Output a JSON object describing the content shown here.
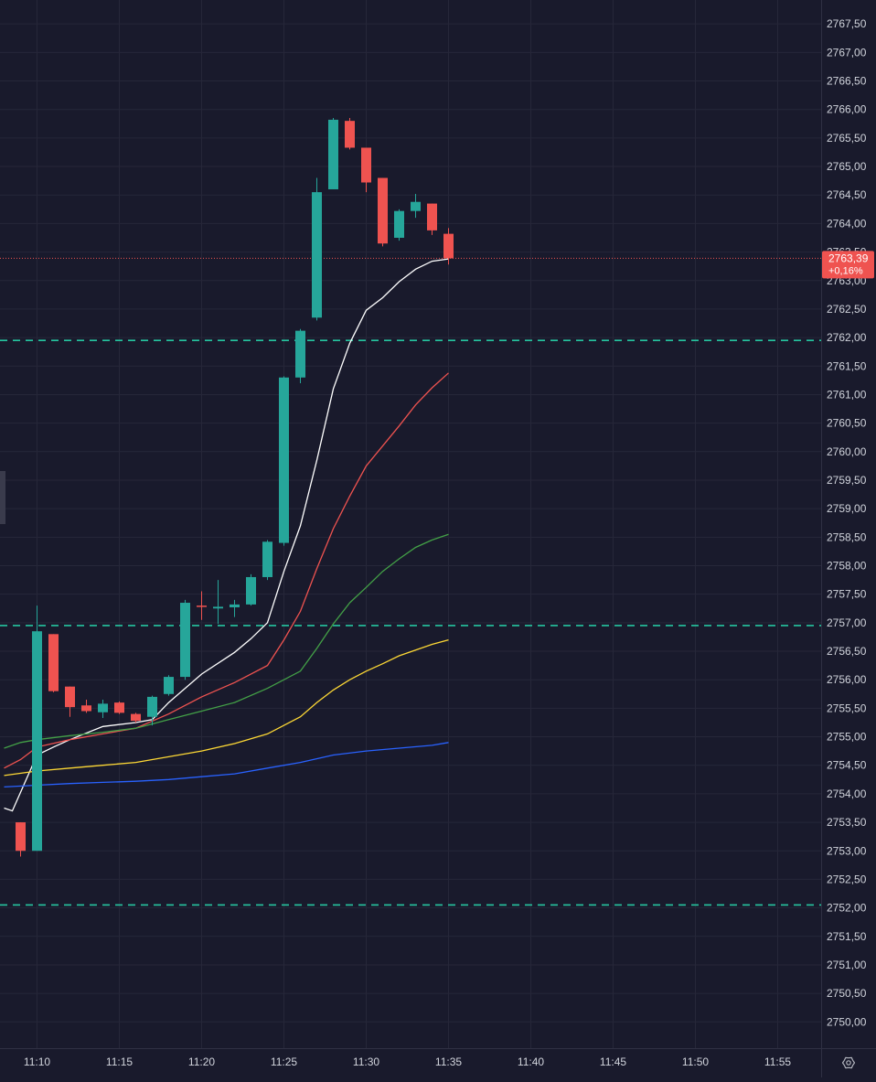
{
  "colors": {
    "background": "#191a2c",
    "grid": "#262739",
    "axis_text": "#d1d4dc",
    "up": "#26a69a",
    "down": "#ef5350",
    "level_line": "#26c6a0",
    "price_line": "#ef5350",
    "icon": "#b2b5be"
  },
  "axis": {
    "settings_icon": "gear-icon"
  },
  "chart_data": {
    "type": "candlestick",
    "interval_minutes": 1,
    "xlim": [
      "11:08",
      "11:56"
    ],
    "ylim": [
      2749.6,
      2767.9
    ],
    "x_ticks": [
      "11:10",
      "11:15",
      "11:20",
      "11:25",
      "11:30",
      "11:35",
      "11:40",
      "11:45",
      "11:50",
      "11:55"
    ],
    "y_ticks": [
      "2750,00",
      "2750,50",
      "2751,00",
      "2751,50",
      "2752,00",
      "2752,50",
      "2753,00",
      "2753,50",
      "2754,00",
      "2754,50",
      "2755,00",
      "2755,50",
      "2756,00",
      "2756,50",
      "2757,00",
      "2757,50",
      "2758,00",
      "2758,50",
      "2759,00",
      "2759,50",
      "2760,00",
      "2760,50",
      "2761,00",
      "2761,50",
      "2762,00",
      "2762,50",
      "2763,00",
      "2763,50",
      "2764,00",
      "2764,50",
      "2765,00",
      "2765,50",
      "2766,00",
      "2766,50",
      "2767,00",
      "2767,50"
    ],
    "last_price": {
      "value": 2763.39,
      "label": "2763,39",
      "change": "+0,16%"
    },
    "levels": [
      2761.95,
      2756.95,
      2752.05
    ],
    "candles": [
      {
        "t": "11:09",
        "o": 2753.5,
        "h": 2753.5,
        "l": 2752.9,
        "c": 2753.0
      },
      {
        "t": "11:10",
        "o": 2753.0,
        "h": 2757.3,
        "l": 2753.0,
        "c": 2756.85
      },
      {
        "t": "11:11",
        "o": 2756.8,
        "h": 2756.8,
        "l": 2755.78,
        "c": 2755.8
      },
      {
        "t": "11:12",
        "o": 2755.88,
        "h": 2755.88,
        "l": 2755.35,
        "c": 2755.52
      },
      {
        "t": "11:13",
        "o": 2755.55,
        "h": 2755.65,
        "l": 2755.42,
        "c": 2755.45
      },
      {
        "t": "11:14",
        "o": 2755.43,
        "h": 2755.65,
        "l": 2755.33,
        "c": 2755.58
      },
      {
        "t": "11:15",
        "o": 2755.6,
        "h": 2755.62,
        "l": 2755.4,
        "c": 2755.42
      },
      {
        "t": "11:16",
        "o": 2755.4,
        "h": 2755.42,
        "l": 2755.25,
        "c": 2755.28
      },
      {
        "t": "11:17",
        "o": 2755.35,
        "h": 2755.72,
        "l": 2755.2,
        "c": 2755.7
      },
      {
        "t": "11:18",
        "o": 2755.75,
        "h": 2756.08,
        "l": 2755.72,
        "c": 2756.05
      },
      {
        "t": "11:19",
        "o": 2756.05,
        "h": 2757.4,
        "l": 2756.0,
        "c": 2757.35
      },
      {
        "t": "11:20",
        "o": 2757.3,
        "h": 2757.55,
        "l": 2757.05,
        "c": 2757.28
      },
      {
        "t": "11:21",
        "o": 2757.25,
        "h": 2757.75,
        "l": 2756.98,
        "c": 2757.28
      },
      {
        "t": "11:22",
        "o": 2757.27,
        "h": 2757.4,
        "l": 2757.1,
        "c": 2757.32
      },
      {
        "t": "11:23",
        "o": 2757.32,
        "h": 2757.85,
        "l": 2757.3,
        "c": 2757.8
      },
      {
        "t": "11:24",
        "o": 2757.8,
        "h": 2758.45,
        "l": 2757.75,
        "c": 2758.42
      },
      {
        "t": "11:25",
        "o": 2758.4,
        "h": 2761.32,
        "l": 2758.35,
        "c": 2761.3
      },
      {
        "t": "11:26",
        "o": 2761.3,
        "h": 2762.15,
        "l": 2761.2,
        "c": 2762.12
      },
      {
        "t": "11:27",
        "o": 2762.35,
        "h": 2764.8,
        "l": 2762.3,
        "c": 2764.55
      },
      {
        "t": "11:28",
        "o": 2764.6,
        "h": 2765.85,
        "l": 2764.6,
        "c": 2765.82
      },
      {
        "t": "11:29",
        "o": 2765.8,
        "h": 2765.85,
        "l": 2765.3,
        "c": 2765.33
      },
      {
        "t": "11:30",
        "o": 2765.33,
        "h": 2765.33,
        "l": 2764.55,
        "c": 2764.72
      },
      {
        "t": "11:31",
        "o": 2764.8,
        "h": 2764.8,
        "l": 2763.6,
        "c": 2763.65
      },
      {
        "t": "11:32",
        "o": 2763.75,
        "h": 2764.25,
        "l": 2763.7,
        "c": 2764.22
      },
      {
        "t": "11:33",
        "o": 2764.22,
        "h": 2764.52,
        "l": 2764.1,
        "c": 2764.38
      },
      {
        "t": "11:34",
        "o": 2764.35,
        "h": 2764.35,
        "l": 2763.8,
        "c": 2763.88
      },
      {
        "t": "11:35",
        "o": 2763.82,
        "h": 2763.92,
        "l": 2763.28,
        "c": 2763.39
      }
    ],
    "series": [
      {
        "color": "#ffffff",
        "points": [
          [
            "11:08",
            2753.75
          ],
          [
            "11:08.5",
            2753.7
          ],
          [
            "11:10",
            2754.68
          ],
          [
            "11:11",
            2754.82
          ],
          [
            "11:12",
            2754.95
          ],
          [
            "11:14",
            2755.18
          ],
          [
            "11:16",
            2755.25
          ],
          [
            "11:17",
            2755.3
          ],
          [
            "11:18",
            2755.6
          ],
          [
            "11:20",
            2756.1
          ],
          [
            "11:22",
            2756.48
          ],
          [
            "11:23",
            2756.72
          ],
          [
            "11:24",
            2757.0
          ],
          [
            "11:25",
            2757.9
          ],
          [
            "11:26",
            2758.7
          ],
          [
            "11:27",
            2759.85
          ],
          [
            "11:28",
            2761.1
          ],
          [
            "11:29",
            2761.9
          ],
          [
            "11:30",
            2762.48
          ],
          [
            "11:31",
            2762.7
          ],
          [
            "11:32",
            2762.98
          ],
          [
            "11:33",
            2763.2
          ],
          [
            "11:34",
            2763.34
          ],
          [
            "11:35",
            2763.38
          ]
        ]
      },
      {
        "color": "#ef5350",
        "points": [
          [
            "11:08",
            2754.45
          ],
          [
            "11:09",
            2754.6
          ],
          [
            "11:10",
            2754.82
          ],
          [
            "11:12",
            2754.95
          ],
          [
            "11:14",
            2755.05
          ],
          [
            "11:16",
            2755.15
          ],
          [
            "11:18",
            2755.4
          ],
          [
            "11:20",
            2755.7
          ],
          [
            "11:22",
            2755.95
          ],
          [
            "11:24",
            2756.25
          ],
          [
            "11:25",
            2756.7
          ],
          [
            "11:26",
            2757.2
          ],
          [
            "11:27",
            2757.95
          ],
          [
            "11:28",
            2758.65
          ],
          [
            "11:29",
            2759.22
          ],
          [
            "11:30",
            2759.75
          ],
          [
            "11:31",
            2760.1
          ],
          [
            "11:32",
            2760.45
          ],
          [
            "11:33",
            2760.82
          ],
          [
            "11:34",
            2761.12
          ],
          [
            "11:35",
            2761.38
          ]
        ]
      },
      {
        "color": "#43a047",
        "points": [
          [
            "11:08",
            2754.8
          ],
          [
            "11:09",
            2754.9
          ],
          [
            "11:10",
            2754.95
          ],
          [
            "11:12",
            2755.02
          ],
          [
            "11:14",
            2755.08
          ],
          [
            "11:16",
            2755.15
          ],
          [
            "11:18",
            2755.3
          ],
          [
            "11:20",
            2755.45
          ],
          [
            "11:22",
            2755.6
          ],
          [
            "11:24",
            2755.85
          ],
          [
            "11:26",
            2756.15
          ],
          [
            "11:27",
            2756.55
          ],
          [
            "11:28",
            2756.98
          ],
          [
            "11:29",
            2757.35
          ],
          [
            "11:30",
            2757.62
          ],
          [
            "11:31",
            2757.9
          ],
          [
            "11:32",
            2758.12
          ],
          [
            "11:33",
            2758.32
          ],
          [
            "11:34",
            2758.45
          ],
          [
            "11:35",
            2758.55
          ]
        ]
      },
      {
        "color": "#fdd835",
        "points": [
          [
            "11:08",
            2754.32
          ],
          [
            "11:10",
            2754.4
          ],
          [
            "11:12",
            2754.45
          ],
          [
            "11:14",
            2754.5
          ],
          [
            "11:16",
            2754.55
          ],
          [
            "11:18",
            2754.65
          ],
          [
            "11:20",
            2754.75
          ],
          [
            "11:22",
            2754.88
          ],
          [
            "11:24",
            2755.05
          ],
          [
            "11:26",
            2755.35
          ],
          [
            "11:27",
            2755.6
          ],
          [
            "11:28",
            2755.82
          ],
          [
            "11:29",
            2756.0
          ],
          [
            "11:30",
            2756.15
          ],
          [
            "11:31",
            2756.28
          ],
          [
            "11:32",
            2756.42
          ],
          [
            "11:33",
            2756.52
          ],
          [
            "11:34",
            2756.62
          ],
          [
            "11:35",
            2756.7
          ]
        ]
      },
      {
        "color": "#2962ff",
        "points": [
          [
            "11:08",
            2754.12
          ],
          [
            "11:10",
            2754.15
          ],
          [
            "11:12",
            2754.18
          ],
          [
            "11:14",
            2754.2
          ],
          [
            "11:16",
            2754.22
          ],
          [
            "11:18",
            2754.25
          ],
          [
            "11:20",
            2754.3
          ],
          [
            "11:22",
            2754.35
          ],
          [
            "11:24",
            2754.45
          ],
          [
            "11:26",
            2754.55
          ],
          [
            "11:28",
            2754.68
          ],
          [
            "11:30",
            2754.75
          ],
          [
            "11:32",
            2754.8
          ],
          [
            "11:34",
            2754.85
          ],
          [
            "11:35",
            2754.9
          ]
        ]
      }
    ]
  }
}
